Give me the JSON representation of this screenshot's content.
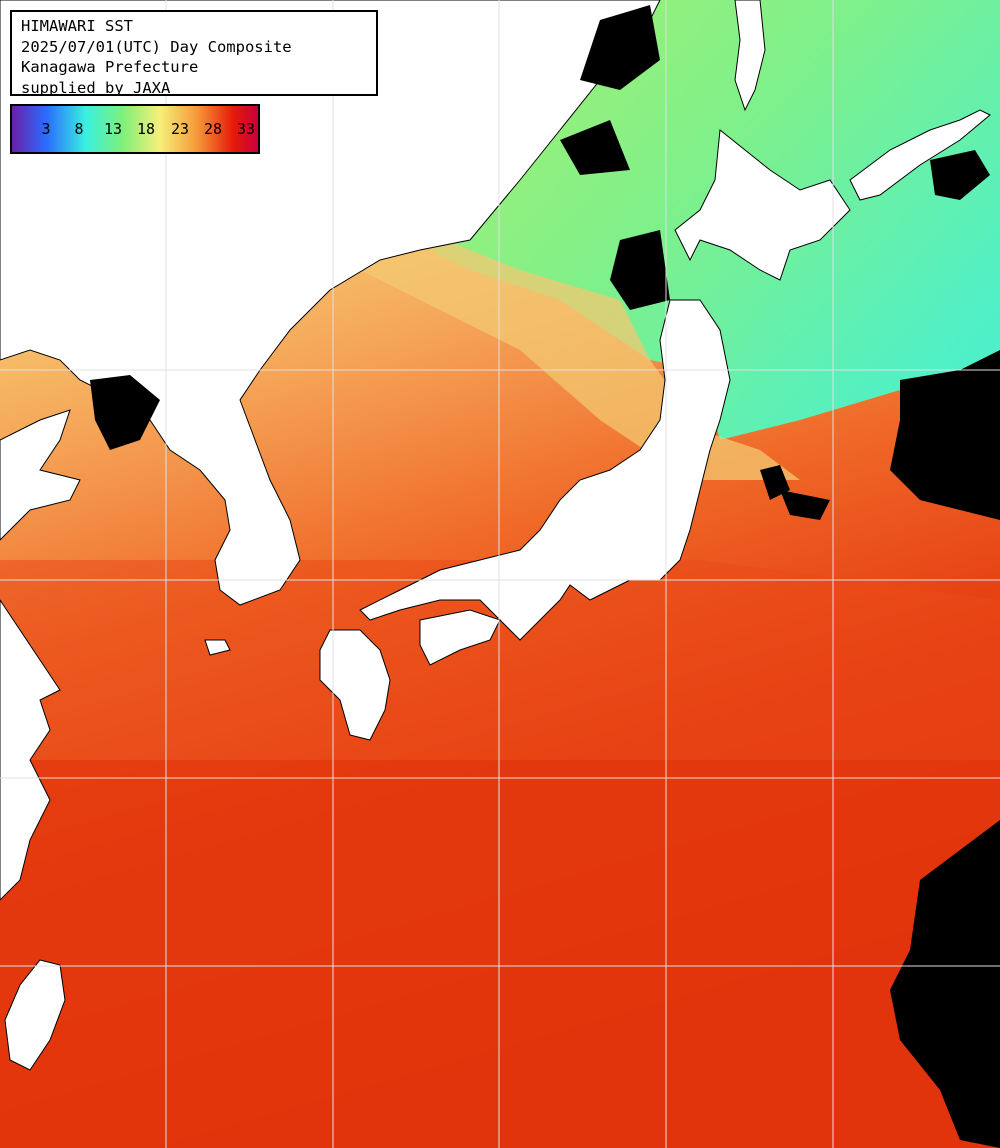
{
  "title": {
    "lines": [
      "HIMAWARI SST",
      "2025/07/01(UTC) Day Composite",
      "Kanagawa Prefecture",
      "supplied by JAXA"
    ]
  },
  "legend": {
    "ticks": [
      "3",
      "8",
      "13",
      "18",
      "23",
      "28",
      "33"
    ],
    "colors": {
      "cold": "#6a1fa8",
      "blue": "#2a6cff",
      "cyan": "#39f0e0",
      "green": "#7ff07a",
      "yellow": "#f6f07a",
      "orange": "#f79a3a",
      "red": "#e51a0a",
      "warmest": "#c8003a"
    }
  },
  "map": {
    "land_color": "#ffffff",
    "cloud_color": "#000000",
    "grid_color": "#e0e0e0"
  }
}
